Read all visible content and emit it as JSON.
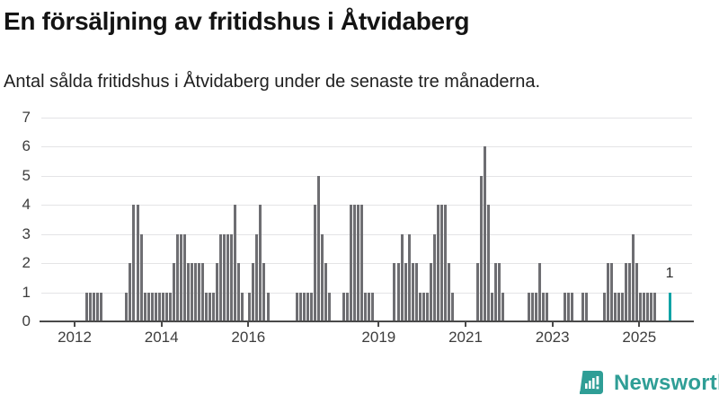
{
  "header": {
    "title": "En försäljning av fritidshus i Åtvidaberg",
    "subtitle": "Antal sålda fritidshus i Åtvidaberg under de senaste tre månaderna."
  },
  "chart_data": {
    "type": "bar",
    "title": "En försäljning av fritidshus i Åtvidaberg",
    "subtitle": "Antal sålda fritidshus i Åtvidaberg under de senaste tre månaderna.",
    "ylabel": "",
    "xlabel": "",
    "ylim": [
      0,
      7
    ],
    "yticks": [
      0,
      1,
      2,
      3,
      4,
      5,
      6,
      7
    ],
    "grid": true,
    "legend": false,
    "x_unit": "months since 2012-01",
    "xticks": [
      {
        "label": "2012",
        "month": 0
      },
      {
        "label": "2014",
        "month": 24
      },
      {
        "label": "2016",
        "month": 48
      },
      {
        "label": "2019",
        "month": 84
      },
      {
        "label": "2021",
        "month": 108
      },
      {
        "label": "2023",
        "month": 132
      },
      {
        "label": "2025",
        "month": 156
      }
    ],
    "clusters": [
      {
        "start_month": 3,
        "start": "2012-04",
        "values": [
          1,
          1,
          1,
          1,
          1
        ]
      },
      {
        "start_month": 14,
        "start": "2013-03",
        "values": [
          1,
          2,
          4,
          4,
          3,
          1,
          1,
          1,
          1,
          1,
          1,
          1
        ]
      },
      {
        "start_month": 26,
        "start": "2014-03",
        "values": [
          1,
          2,
          3,
          3,
          3,
          2,
          2,
          2,
          2,
          2,
          1,
          1,
          1
        ]
      },
      {
        "start_month": 39,
        "start": "2015-04",
        "values": [
          2,
          3,
          3,
          3,
          3,
          4,
          2,
          1
        ]
      },
      {
        "start_month": 48,
        "start": "2016-01",
        "values": [
          1,
          2,
          3,
          4,
          2,
          1
        ]
      },
      {
        "start_month": 61,
        "start": "2017-02",
        "values": [
          1,
          1,
          1,
          1,
          1,
          4,
          5,
          3,
          2,
          1
        ]
      },
      {
        "start_month": 74,
        "start": "2018-03",
        "values": [
          1,
          1,
          4,
          4,
          4,
          4,
          1,
          1,
          1
        ]
      },
      {
        "start_month": 88,
        "start": "2019-05",
        "values": [
          2,
          2,
          3,
          2,
          3,
          2,
          2,
          1,
          1
        ]
      },
      {
        "start_month": 97,
        "start": "2020-02",
        "values": [
          1,
          2,
          3,
          4,
          4,
          4,
          2,
          1
        ]
      },
      {
        "start_month": 111,
        "start": "2021-04",
        "values": [
          2,
          5,
          6,
          4,
          1,
          2,
          2,
          1
        ]
      },
      {
        "start_month": 125,
        "start": "2022-06",
        "values": [
          1,
          1,
          1,
          2,
          1,
          1
        ]
      },
      {
        "start_month": 135,
        "start": "2023-04",
        "values": [
          1,
          1,
          1
        ]
      },
      {
        "start_month": 140,
        "start": "2023-09",
        "values": [
          1,
          1
        ]
      },
      {
        "start_month": 146,
        "start": "2024-03",
        "values": [
          1,
          2,
          2,
          1,
          1,
          1,
          2,
          2,
          3,
          2,
          1,
          1
        ]
      },
      {
        "start_month": 158,
        "start": "2025-03",
        "values": [
          1,
          1,
          1
        ]
      }
    ],
    "highlight_bar": {
      "month": 164,
      "date": "2025-09",
      "value": 1,
      "label": "1"
    }
  },
  "annotation": {
    "label": "1"
  },
  "logo": {
    "text": "Newsworthy",
    "icon": "newsworthy-bars-speech-bubble"
  },
  "colors": {
    "bar": "#6e6e72",
    "highlight": "#0fa3a6",
    "grid": "#e4e4e6",
    "axis": "#4a4a4a",
    "tick_text": "#3d3d3d",
    "title_text": "#141414",
    "logo": "#2f9e96"
  }
}
